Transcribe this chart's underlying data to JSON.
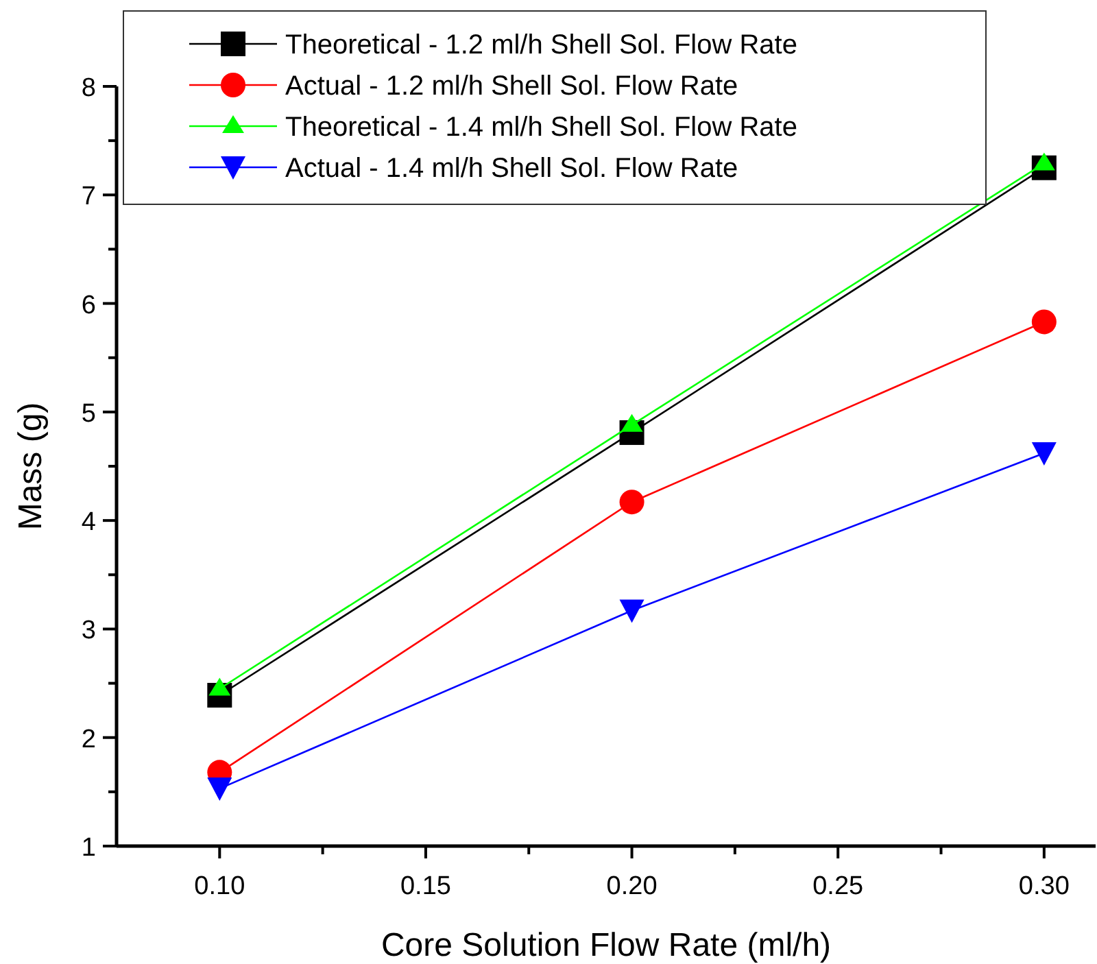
{
  "chart_data": {
    "type": "line",
    "xlabel": "Core Solution Flow Rate (ml/h)",
    "ylabel": "Mass (g)",
    "x": [
      0.1,
      0.2,
      0.3
    ],
    "series": [
      {
        "name": "Theoretical - 1.2 ml/h Shell Sol. Flow Rate",
        "color": "#000000",
        "marker": "square",
        "values": [
          2.39,
          4.81,
          7.25
        ]
      },
      {
        "name": "Actual - 1.2 ml/h Shell Sol. Flow Rate",
        "color": "#ff0000",
        "marker": "circle",
        "values": [
          1.68,
          4.17,
          5.83
        ]
      },
      {
        "name": "Theoretical - 1.4 ml/h Shell Sol. Flow Rate",
        "color": "#00ff00",
        "marker": "triangle",
        "values": [
          2.45,
          4.88,
          7.29
        ]
      },
      {
        "name": "Actual - 1.4 ml/h Shell Sol. Flow Rate",
        "color": "#0000ff",
        "marker": "triangle-down",
        "values": [
          1.53,
          3.17,
          4.62
        ]
      }
    ],
    "xlim": [
      0.075,
      0.3125
    ],
    "xticks": [
      {
        "value": 0.1,
        "label": "0.10"
      },
      {
        "value": 0.125,
        "label": null
      },
      {
        "value": 0.15,
        "label": "0.15"
      },
      {
        "value": 0.175,
        "label": null
      },
      {
        "value": 0.2,
        "label": "0.20"
      },
      {
        "value": 0.225,
        "label": null
      },
      {
        "value": 0.25,
        "label": "0.25"
      },
      {
        "value": 0.275,
        "label": null
      },
      {
        "value": 0.3,
        "label": "0.30"
      }
    ],
    "ylim": [
      1,
      8
    ],
    "yticks": [
      1,
      {
        "value": 1.5,
        "label": null
      },
      2,
      {
        "value": 2.5,
        "label": null
      },
      3,
      {
        "value": 3.5,
        "label": null
      },
      4,
      {
        "value": 4.5,
        "label": null
      },
      5,
      {
        "value": 5.5,
        "label": null
      },
      6,
      {
        "value": 6.5,
        "label": null
      },
      7,
      {
        "value": 7.5,
        "label": null
      },
      8
    ],
    "grid": false,
    "legend": "top",
    "line_style": "solid"
  }
}
